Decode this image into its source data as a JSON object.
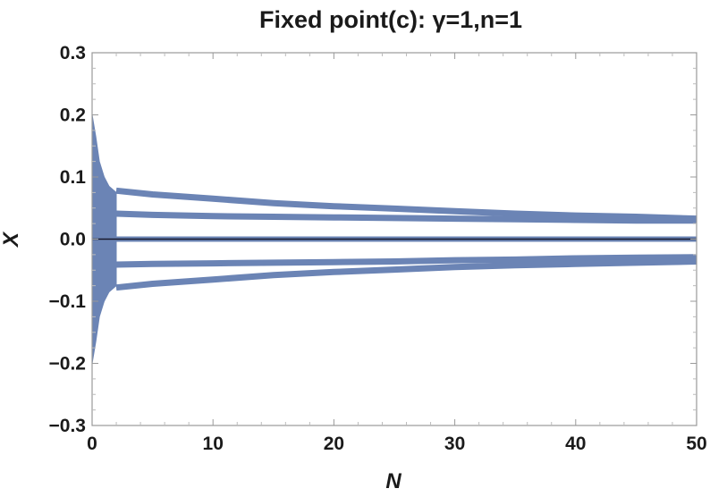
{
  "chart_data": {
    "type": "area",
    "title": "Fixed point(c): γ=1,n=1",
    "xlabel": "N",
    "ylabel": "X",
    "xlim": [
      0,
      50
    ],
    "ylim": [
      -0.3,
      0.3
    ],
    "xticks": [
      0,
      10,
      20,
      30,
      40,
      50
    ],
    "xtick_labels": [
      "0",
      "10",
      "20",
      "30",
      "40",
      "50"
    ],
    "yticks": [
      -0.3,
      -0.2,
      -0.1,
      0.0,
      0.1,
      0.2,
      0.3
    ],
    "ytick_labels": [
      "−0.3",
      "−0.2",
      "−0.1",
      "0.0",
      "0.1",
      "0.2",
      "0.3"
    ],
    "grid": false,
    "colors": {
      "band": "#6b84b5",
      "zero_line": "#1a1a2e",
      "frame": "#999999"
    },
    "transient": {
      "x": [
        0,
        0.3,
        0.6,
        1.0,
        1.4,
        2.0
      ],
      "upper": [
        0.2,
        0.165,
        0.125,
        0.1,
        0.085,
        0.075
      ],
      "lower": [
        -0.2,
        -0.165,
        -0.125,
        -0.1,
        -0.085,
        -0.075
      ]
    },
    "series": [
      {
        "x": [
          2,
          5,
          10,
          15,
          20,
          25,
          30,
          35,
          40,
          45,
          50
        ],
        "values": [
          0.078,
          0.072,
          0.065,
          0.058,
          0.053,
          0.049,
          0.045,
          0.041,
          0.038,
          0.036,
          0.033
        ]
      },
      {
        "x": [
          2,
          5,
          10,
          15,
          20,
          25,
          30,
          35,
          40,
          45,
          50
        ],
        "values": [
          0.041,
          0.039,
          0.037,
          0.036,
          0.035,
          0.034,
          0.033,
          0.032,
          0.031,
          0.03,
          0.03
        ]
      },
      {
        "x": [
          0,
          50
        ],
        "values": [
          0.0,
          0.0
        ]
      },
      {
        "x": [
          2,
          5,
          10,
          15,
          20,
          25,
          30,
          35,
          40,
          45,
          50
        ],
        "values": [
          -0.041,
          -0.04,
          -0.039,
          -0.038,
          -0.037,
          -0.036,
          -0.034,
          -0.033,
          -0.031,
          -0.03,
          -0.029
        ]
      },
      {
        "x": [
          2,
          5,
          10,
          15,
          20,
          25,
          30,
          35,
          40,
          45,
          50
        ],
        "values": [
          -0.078,
          -0.072,
          -0.065,
          -0.058,
          -0.053,
          -0.049,
          -0.045,
          -0.042,
          -0.04,
          -0.038,
          -0.036
        ]
      }
    ]
  }
}
